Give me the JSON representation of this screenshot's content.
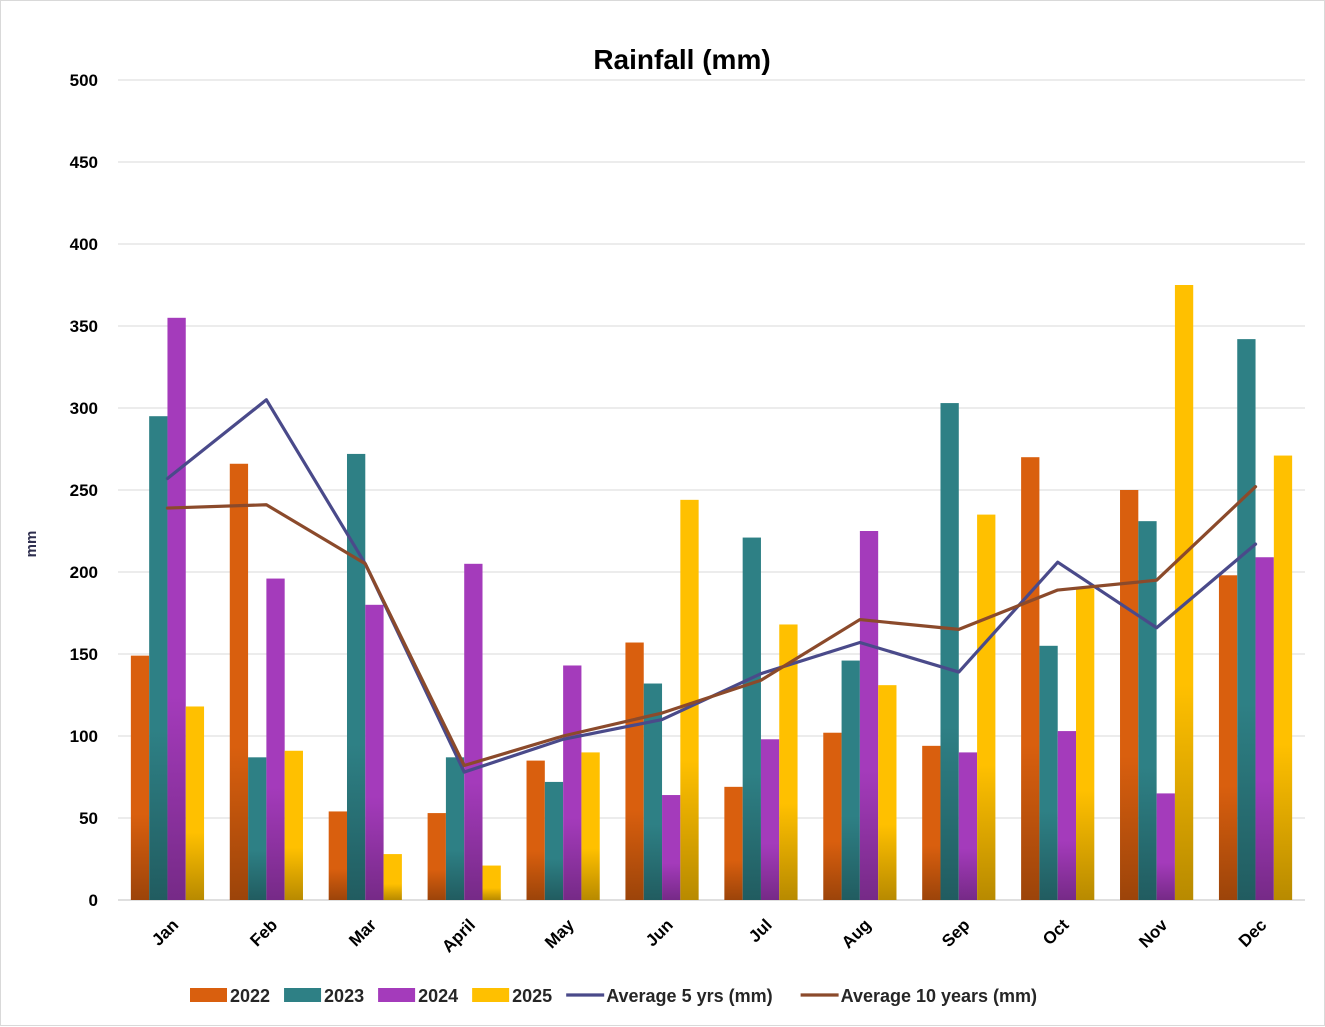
{
  "chart_data": {
    "type": "bar",
    "title": "Rainfall (mm)",
    "xlabel": "",
    "ylabel": "mm",
    "ylim": [
      0,
      500
    ],
    "yticks": [
      "0",
      "50",
      "100",
      "150",
      "200",
      "250",
      "300",
      "350",
      "400",
      "450",
      "500"
    ],
    "grid": true,
    "legend_position": "bottom",
    "categories": [
      "Jan",
      "Feb",
      "Mar",
      "April",
      "May",
      "Jun",
      "Jul",
      "Aug",
      "Sep",
      "Oct",
      "Nov",
      "Dec"
    ],
    "series": [
      {
        "name": "2022",
        "kind": "bar",
        "color": "#d95f0e",
        "values": [
          149,
          266,
          54,
          53,
          85,
          157,
          69,
          102,
          94,
          270,
          250,
          198
        ]
      },
      {
        "name": "2023",
        "kind": "bar",
        "color": "#2e8085",
        "values": [
          295,
          87,
          272,
          87,
          72,
          132,
          221,
          146,
          303,
          155,
          231,
          342
        ]
      },
      {
        "name": "2024",
        "kind": "bar",
        "color": "#a43bbb",
        "values": [
          355,
          196,
          180,
          205,
          143,
          64,
          98,
          225,
          90,
          103,
          65,
          209
        ]
      },
      {
        "name": "2025",
        "kind": "bar",
        "color": "#ffc000",
        "values": [
          118,
          91,
          28,
          21,
          90,
          244,
          168,
          131,
          235,
          190,
          375,
          271
        ]
      },
      {
        "name": "Average 5 yrs (mm)",
        "kind": "line",
        "color": "#4a4a8a",
        "values": [
          257,
          305,
          205,
          78,
          98,
          110,
          138,
          157,
          139,
          206,
          166,
          217
        ]
      },
      {
        "name": "Average 10 years (mm)",
        "kind": "line",
        "color": "#8b4a2b",
        "values": [
          239,
          241,
          205,
          82,
          100,
          114,
          134,
          171,
          165,
          189,
          195,
          252
        ]
      }
    ]
  }
}
